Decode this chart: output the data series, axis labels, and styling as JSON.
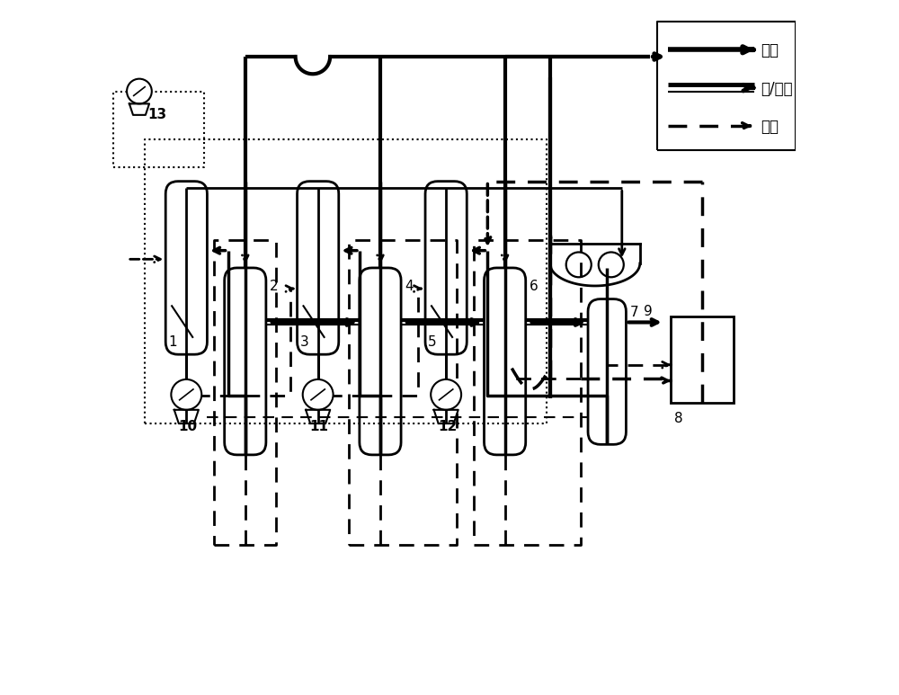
{
  "bg_color": "#ffffff",
  "line_color": "#000000",
  "legend": {
    "vapor_label": "汽相",
    "vapor_liquid_label": "汽/液相",
    "liquid_label": "液相"
  }
}
